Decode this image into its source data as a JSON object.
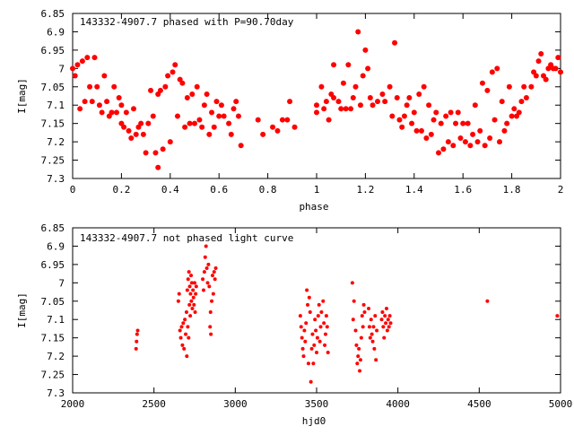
{
  "chart_data": [
    {
      "type": "scatter",
      "title": "143332-4907.7 phased with P=90.70day",
      "xlabel": "phase",
      "ylabel": "I[mag]",
      "xlim": [
        0,
        2
      ],
      "ylim": [
        6.85,
        7.3
      ],
      "y_inverted": true,
      "grid": false,
      "xticks": [
        "0",
        "0.2",
        "0.4",
        "0.6",
        "0.8",
        "1",
        "1.2",
        "1.4",
        "1.6",
        "1.8",
        "2"
      ],
      "yticks": [
        "6.85",
        "6.9",
        "6.95",
        "7",
        "7.05",
        "7.1",
        "7.15",
        "7.2",
        "7.25",
        "7.3"
      ],
      "color": "#ff0000",
      "points": [
        [
          0.0,
          7.0
        ],
        [
          0.01,
          7.02
        ],
        [
          0.02,
          6.99
        ],
        [
          0.03,
          7.11
        ],
        [
          0.04,
          6.98
        ],
        [
          0.05,
          7.09
        ],
        [
          0.06,
          6.97
        ],
        [
          0.07,
          7.05
        ],
        [
          0.08,
          7.09
        ],
        [
          0.09,
          6.97
        ],
        [
          0.1,
          7.05
        ],
        [
          0.11,
          7.1
        ],
        [
          0.12,
          7.12
        ],
        [
          0.13,
          7.02
        ],
        [
          0.14,
          7.09
        ],
        [
          0.15,
          7.13
        ],
        [
          0.16,
          7.12
        ],
        [
          0.17,
          7.05
        ],
        [
          0.18,
          7.12
        ],
        [
          0.19,
          7.08
        ],
        [
          0.2,
          7.1
        ],
        [
          0.2,
          7.15
        ],
        [
          0.21,
          7.16
        ],
        [
          0.22,
          7.12
        ],
        [
          0.23,
          7.17
        ],
        [
          0.24,
          7.19
        ],
        [
          0.25,
          7.11
        ],
        [
          0.26,
          7.18
        ],
        [
          0.27,
          7.16
        ],
        [
          0.28,
          7.15
        ],
        [
          0.29,
          7.18
        ],
        [
          0.3,
          7.23
        ],
        [
          0.31,
          7.15
        ],
        [
          0.32,
          7.06
        ],
        [
          0.33,
          7.13
        ],
        [
          0.34,
          7.23
        ],
        [
          0.35,
          7.07
        ],
        [
          0.35,
          7.27
        ],
        [
          0.36,
          7.06
        ],
        [
          0.37,
          7.22
        ],
        [
          0.38,
          7.05
        ],
        [
          0.39,
          7.02
        ],
        [
          0.4,
          7.2
        ],
        [
          0.41,
          7.01
        ],
        [
          0.42,
          6.99
        ],
        [
          0.43,
          7.13
        ],
        [
          0.44,
          7.03
        ],
        [
          0.45,
          7.04
        ],
        [
          0.46,
          7.16
        ],
        [
          0.47,
          7.08
        ],
        [
          0.48,
          7.15
        ],
        [
          0.49,
          7.07
        ],
        [
          0.5,
          7.15
        ],
        [
          0.51,
          7.05
        ],
        [
          0.52,
          7.14
        ],
        [
          0.53,
          7.16
        ],
        [
          0.54,
          7.1
        ],
        [
          0.55,
          7.07
        ],
        [
          0.56,
          7.18
        ],
        [
          0.57,
          7.12
        ],
        [
          0.58,
          7.16
        ],
        [
          0.59,
          7.09
        ],
        [
          0.6,
          7.13
        ],
        [
          0.61,
          7.1
        ],
        [
          0.62,
          7.13
        ],
        [
          0.64,
          7.15
        ],
        [
          0.65,
          7.18
        ],
        [
          0.66,
          7.11
        ],
        [
          0.67,
          7.09
        ],
        [
          0.68,
          7.13
        ],
        [
          0.69,
          7.21
        ],
        [
          0.76,
          7.14
        ],
        [
          0.78,
          7.18
        ],
        [
          0.82,
          7.16
        ],
        [
          0.84,
          7.17
        ],
        [
          0.86,
          7.14
        ],
        [
          0.88,
          7.14
        ],
        [
          0.89,
          7.09
        ],
        [
          0.91,
          7.16
        ],
        [
          1.0,
          7.12
        ],
        [
          1.0,
          7.1
        ],
        [
          1.02,
          7.05
        ],
        [
          1.03,
          7.11
        ],
        [
          1.04,
          7.09
        ],
        [
          1.05,
          7.14
        ],
        [
          1.06,
          7.07
        ],
        [
          1.07,
          7.08
        ],
        [
          1.07,
          6.99
        ],
        [
          1.09,
          7.09
        ],
        [
          1.1,
          7.11
        ],
        [
          1.11,
          7.04
        ],
        [
          1.12,
          7.11
        ],
        [
          1.13,
          6.99
        ],
        [
          1.14,
          7.11
        ],
        [
          1.15,
          7.08
        ],
        [
          1.16,
          7.05
        ],
        [
          1.17,
          6.9
        ],
        [
          1.18,
          7.1
        ],
        [
          1.19,
          7.02
        ],
        [
          1.2,
          6.95
        ],
        [
          1.21,
          7.0
        ],
        [
          1.22,
          7.08
        ],
        [
          1.23,
          7.1
        ],
        [
          1.25,
          7.09
        ],
        [
          1.27,
          7.07
        ],
        [
          1.28,
          7.09
        ],
        [
          1.3,
          7.05
        ],
        [
          1.31,
          7.13
        ],
        [
          1.32,
          6.93
        ],
        [
          1.33,
          7.08
        ],
        [
          1.34,
          7.14
        ],
        [
          1.35,
          7.16
        ],
        [
          1.36,
          7.13
        ],
        [
          1.37,
          7.1
        ],
        [
          1.38,
          7.08
        ],
        [
          1.39,
          7.15
        ],
        [
          1.4,
          7.12
        ],
        [
          1.41,
          7.17
        ],
        [
          1.42,
          7.07
        ],
        [
          1.43,
          7.17
        ],
        [
          1.44,
          7.05
        ],
        [
          1.45,
          7.19
        ],
        [
          1.46,
          7.1
        ],
        [
          1.47,
          7.18
        ],
        [
          1.48,
          7.14
        ],
        [
          1.49,
          7.12
        ],
        [
          1.5,
          7.23
        ],
        [
          1.51,
          7.15
        ],
        [
          1.52,
          7.22
        ],
        [
          1.53,
          7.13
        ],
        [
          1.54,
          7.2
        ],
        [
          1.55,
          7.12
        ],
        [
          1.56,
          7.21
        ],
        [
          1.57,
          7.15
        ],
        [
          1.58,
          7.12
        ],
        [
          1.59,
          7.19
        ],
        [
          1.6,
          7.15
        ],
        [
          1.61,
          7.2
        ],
        [
          1.62,
          7.15
        ],
        [
          1.63,
          7.21
        ],
        [
          1.64,
          7.18
        ],
        [
          1.65,
          7.1
        ],
        [
          1.66,
          7.2
        ],
        [
          1.67,
          7.17
        ],
        [
          1.68,
          7.04
        ],
        [
          1.69,
          7.21
        ],
        [
          1.7,
          7.06
        ],
        [
          1.71,
          7.19
        ],
        [
          1.72,
          7.01
        ],
        [
          1.73,
          7.14
        ],
        [
          1.74,
          7.0
        ],
        [
          1.75,
          7.2
        ],
        [
          1.76,
          7.09
        ],
        [
          1.77,
          7.17
        ],
        [
          1.78,
          7.15
        ],
        [
          1.79,
          7.05
        ],
        [
          1.8,
          7.13
        ],
        [
          1.81,
          7.11
        ],
        [
          1.82,
          7.13
        ],
        [
          1.83,
          7.12
        ],
        [
          1.84,
          7.09
        ],
        [
          1.85,
          7.05
        ],
        [
          1.86,
          7.08
        ],
        [
          1.88,
          7.05
        ],
        [
          1.89,
          7.01
        ],
        [
          1.9,
          7.02
        ],
        [
          1.91,
          6.98
        ],
        [
          1.92,
          6.96
        ],
        [
          1.93,
          7.02
        ],
        [
          1.94,
          7.03
        ],
        [
          1.95,
          7.0
        ],
        [
          1.96,
          6.99
        ],
        [
          1.97,
          7.0
        ],
        [
          1.98,
          7.0
        ],
        [
          1.99,
          6.97
        ],
        [
          2.0,
          7.01
        ]
      ]
    },
    {
      "type": "scatter",
      "title": "143332-4907.7 not phased light curve",
      "xlabel": "hjd0",
      "ylabel": "I[mag]",
      "xlim": [
        2000,
        5000
      ],
      "ylim": [
        6.85,
        7.3
      ],
      "y_inverted": true,
      "grid": false,
      "xticks": [
        "2000",
        "2500",
        "3000",
        "3500",
        "4000",
        "4500",
        "5000"
      ],
      "yticks": [
        "6.85",
        "6.9",
        "6.95",
        "7",
        "7.05",
        "7.1",
        "7.15",
        "7.2",
        "7.25",
        "7.3"
      ],
      "color": "#ff0000",
      "points": [
        [
          2390,
          7.18
        ],
        [
          2393,
          7.16
        ],
        [
          2396,
          7.14
        ],
        [
          2400,
          7.13
        ],
        [
          2650,
          7.05
        ],
        [
          2655,
          7.03
        ],
        [
          2660,
          7.13
        ],
        [
          2665,
          7.15
        ],
        [
          2670,
          7.12
        ],
        [
          2675,
          7.17
        ],
        [
          2680,
          7.11
        ],
        [
          2685,
          7.18
        ],
        [
          2690,
          7.1
        ],
        [
          2695,
          7.14
        ],
        [
          2700,
          7.08
        ],
        [
          2702,
          7.2
        ],
        [
          2705,
          7.02
        ],
        [
          2708,
          7.12
        ],
        [
          2710,
          6.99
        ],
        [
          2713,
          7.15
        ],
        [
          2715,
          6.97
        ],
        [
          2718,
          7.06
        ],
        [
          2720,
          7.01
        ],
        [
          2723,
          7.09
        ],
        [
          2725,
          7.03
        ],
        [
          2728,
          6.98
        ],
        [
          2730,
          7.05
        ],
        [
          2733,
          7.0
        ],
        [
          2736,
          7.07
        ],
        [
          2740,
          7.02
        ],
        [
          2743,
          7.04
        ],
        [
          2746,
          7.06
        ],
        [
          2750,
          7.0
        ],
        [
          2753,
          7.08
        ],
        [
          2756,
          7.03
        ],
        [
          2760,
          7.01
        ],
        [
          2800,
          6.99
        ],
        [
          2805,
          7.02
        ],
        [
          2810,
          6.97
        ],
        [
          2815,
          6.93
        ],
        [
          2820,
          6.9
        ],
        [
          2825,
          6.96
        ],
        [
          2830,
          7.0
        ],
        [
          2835,
          6.95
        ],
        [
          2840,
          7.01
        ],
        [
          2845,
          7.12
        ],
        [
          2848,
          7.08
        ],
        [
          2850,
          7.14
        ],
        [
          2855,
          7.05
        ],
        [
          2860,
          6.98
        ],
        [
          2865,
          7.03
        ],
        [
          2870,
          6.97
        ],
        [
          2875,
          6.99
        ],
        [
          2880,
          6.96
        ],
        [
          3400,
          7.09
        ],
        [
          3405,
          7.12
        ],
        [
          3410,
          7.15
        ],
        [
          3415,
          7.18
        ],
        [
          3420,
          7.2
        ],
        [
          3425,
          7.13
        ],
        [
          3430,
          7.16
        ],
        [
          3435,
          7.11
        ],
        [
          3440,
          7.02
        ],
        [
          3445,
          7.06
        ],
        [
          3450,
          7.22
        ],
        [
          3455,
          7.04
        ],
        [
          3460,
          7.08
        ],
        [
          3465,
          7.27
        ],
        [
          3470,
          7.18
        ],
        [
          3475,
          7.14
        ],
        [
          3480,
          7.22
        ],
        [
          3485,
          7.17
        ],
        [
          3490,
          7.1
        ],
        [
          3495,
          7.13
        ],
        [
          3500,
          7.19
        ],
        [
          3505,
          7.15
        ],
        [
          3510,
          7.09
        ],
        [
          3515,
          7.06
        ],
        [
          3520,
          7.16
        ],
        [
          3525,
          7.12
        ],
        [
          3530,
          7.08
        ],
        [
          3540,
          7.05
        ],
        [
          3545,
          7.11
        ],
        [
          3550,
          7.17
        ],
        [
          3555,
          7.14
        ],
        [
          3560,
          7.09
        ],
        [
          3565,
          7.12
        ],
        [
          3570,
          7.19
        ],
        [
          3720,
          7.0
        ],
        [
          3725,
          7.1
        ],
        [
          3730,
          7.05
        ],
        [
          3740,
          7.13
        ],
        [
          3745,
          7.17
        ],
        [
          3750,
          7.22
        ],
        [
          3755,
          7.2
        ],
        [
          3760,
          7.18
        ],
        [
          3765,
          7.24
        ],
        [
          3770,
          7.21
        ],
        [
          3775,
          7.15
        ],
        [
          3780,
          7.09
        ],
        [
          3785,
          7.12
        ],
        [
          3790,
          7.06
        ],
        [
          3795,
          7.08
        ],
        [
          3820,
          7.07
        ],
        [
          3825,
          7.12
        ],
        [
          3830,
          7.15
        ],
        [
          3835,
          7.1
        ],
        [
          3840,
          7.14
        ],
        [
          3845,
          7.16
        ],
        [
          3850,
          7.12
        ],
        [
          3855,
          7.18
        ],
        [
          3860,
          7.09
        ],
        [
          3865,
          7.21
        ],
        [
          3870,
          7.13
        ],
        [
          3900,
          7.1
        ],
        [
          3905,
          7.08
        ],
        [
          3910,
          7.12
        ],
        [
          3915,
          7.15
        ],
        [
          3920,
          7.09
        ],
        [
          3925,
          7.11
        ],
        [
          3930,
          7.07
        ],
        [
          3935,
          7.13
        ],
        [
          3940,
          7.1
        ],
        [
          3945,
          7.12
        ],
        [
          3950,
          7.09
        ],
        [
          3955,
          7.11
        ],
        [
          4550,
          7.05
        ],
        [
          4980,
          7.09
        ]
      ]
    }
  ]
}
